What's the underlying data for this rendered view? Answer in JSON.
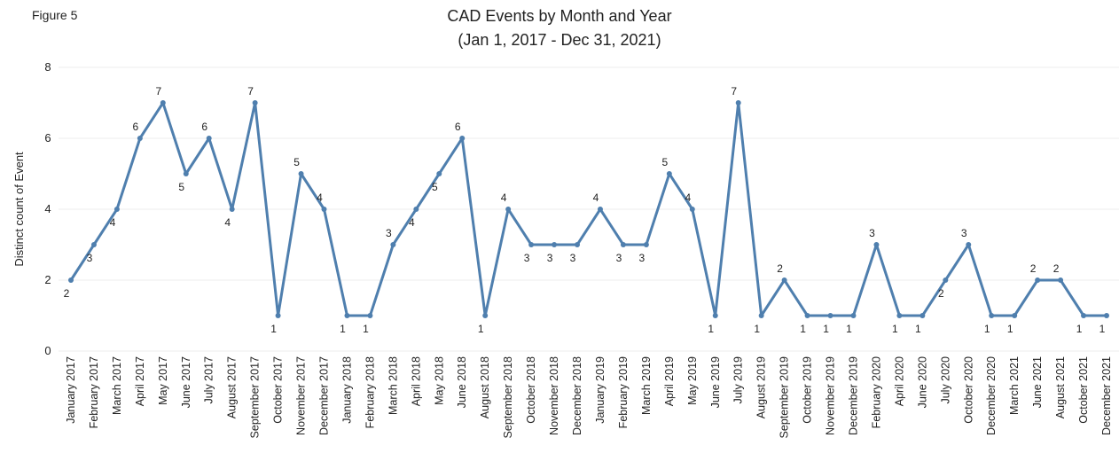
{
  "figure_label": "Figure 5",
  "chart_data": {
    "type": "line",
    "title": "CAD Events by Month and Year",
    "subtitle": "(Jan 1, 2017 - Dec 31, 2021)",
    "y_label": "Distinct count of Event",
    "categories": [
      "January 2017",
      "February 2017",
      "March 2017",
      "April 2017",
      "May 2017",
      "June 2017",
      "July 2017",
      "August 2017",
      "September 2017",
      "October 2017",
      "November 2017",
      "December 2017",
      "January 2018",
      "February 2018",
      "March 2018",
      "April 2018",
      "May 2018",
      "June 2018",
      "August 2018",
      "September 2018",
      "October 2018",
      "November 2018",
      "December 2018",
      "January 2019",
      "February 2019",
      "March 2019",
      "April 2019",
      "May 2019",
      "June 2019",
      "July 2019",
      "August 2019",
      "September 2019",
      "October 2019",
      "November 2019",
      "December 2019",
      "February 2020",
      "April 2020",
      "June 2020",
      "July 2020",
      "October 2020",
      "December 2020",
      "March 2021",
      "June 2021",
      "August 2021",
      "October 2021",
      "December 2021"
    ],
    "series": [
      {
        "name": "Distinct count of Event",
        "color": "#4f7fae",
        "values": [
          2,
          3,
          4,
          6,
          7,
          5,
          6,
          4,
          7,
          1,
          5,
          4,
          1,
          1,
          3,
          4,
          5,
          6,
          1,
          4,
          3,
          3,
          3,
          4,
          3,
          3,
          5,
          4,
          1,
          7,
          1,
          2,
          1,
          1,
          1,
          3,
          1,
          1,
          2,
          3,
          1,
          1,
          2,
          2,
          1,
          1
        ]
      }
    ],
    "ylim": [
      0,
      8
    ],
    "yticks": [
      0,
      2,
      4,
      6,
      8
    ],
    "grid": true
  }
}
